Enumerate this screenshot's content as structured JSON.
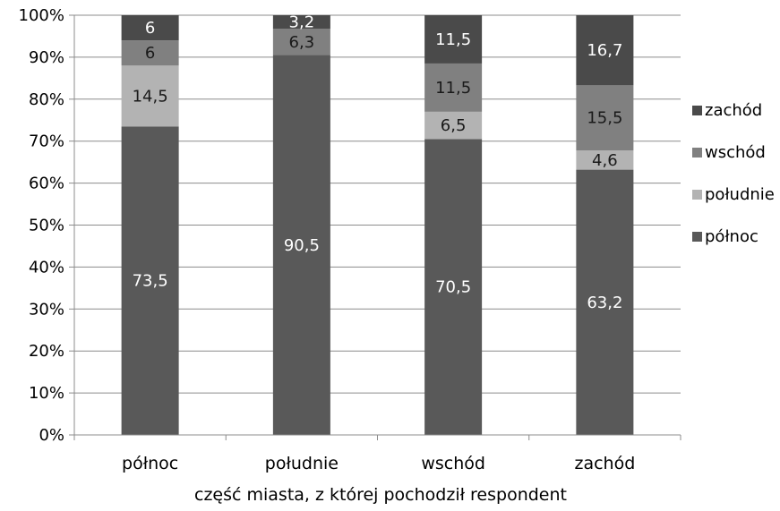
{
  "chart_data": {
    "type": "bar",
    "stacked": true,
    "percent": true,
    "categories": [
      "północ",
      "południe",
      "wschód",
      "zachód"
    ],
    "series": [
      {
        "name": "północ",
        "color": "#595959",
        "label_color": "#ffffff",
        "values": [
          73.5,
          90.5,
          70.5,
          63.2
        ]
      },
      {
        "name": "południe",
        "color": "#b3b3b3",
        "label_color": "#1a1a1a",
        "values": [
          14.5,
          null,
          6.5,
          4.6
        ]
      },
      {
        "name": "wschód",
        "color": "#808080",
        "label_color": "#1a1a1a",
        "values": [
          6,
          6.3,
          11.5,
          15.5
        ]
      },
      {
        "name": "zachód",
        "color": "#4a4a4a",
        "label_color": "#ffffff",
        "values": [
          6,
          3.2,
          11.5,
          16.7
        ]
      }
    ],
    "value_labels": [
      [
        "73,5",
        "14,5",
        "6",
        "6"
      ],
      [
        "90,5",
        "",
        "6,3",
        "3,2"
      ],
      [
        "70,5",
        "6,5",
        "11,5",
        "11,5"
      ],
      [
        "63,2",
        "4,6",
        "15,5",
        "16,7"
      ]
    ],
    "ylim": [
      0,
      100
    ],
    "yticks": [
      "0%",
      "10%",
      "20%",
      "30%",
      "40%",
      "50%",
      "60%",
      "70%",
      "80%",
      "90%",
      "100%"
    ],
    "xlabel": "część miasta, z której pochodził respondent",
    "ylabel": "",
    "grid": true,
    "legend_position": "right",
    "legend_order": [
      "zachód",
      "wschód",
      "południe",
      "północ"
    ]
  }
}
